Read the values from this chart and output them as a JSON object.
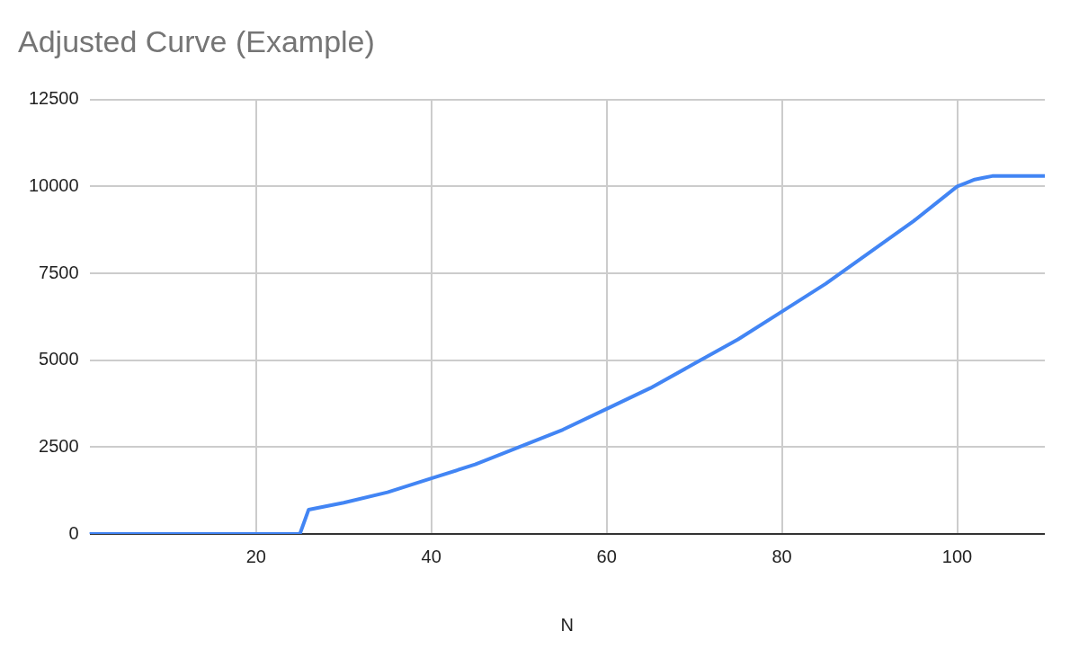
{
  "chart_data": {
    "type": "line",
    "title": "Adjusted Curve (Example)",
    "xlabel": "N",
    "x": [
      1,
      5,
      10,
      15,
      20,
      25,
      26,
      30,
      35,
      40,
      45,
      50,
      55,
      60,
      65,
      70,
      75,
      80,
      85,
      90,
      95,
      100,
      101,
      102,
      103,
      104,
      105,
      107,
      110
    ],
    "series": [
      {
        "color": "#4285f4",
        "values": [
          0,
          0,
          0,
          0,
          0,
          0,
          700,
          900,
          1200,
          1600,
          2000,
          2500,
          3000,
          3600,
          4200,
          4900,
          5600,
          6400,
          7200,
          8100,
          9000,
          10000,
          10100,
          10200,
          10250,
          10300,
          10300,
          10300,
          10300
        ]
      }
    ],
    "xlim": [
      1,
      110
    ],
    "xticks": [
      20,
      40,
      60,
      80,
      100
    ],
    "ylim": [
      0,
      12500
    ],
    "yticks": [
      0,
      2500,
      5000,
      7500,
      10000,
      12500
    ],
    "grid": true,
    "legend": false,
    "marker": "none",
    "line_style": "solid"
  }
}
